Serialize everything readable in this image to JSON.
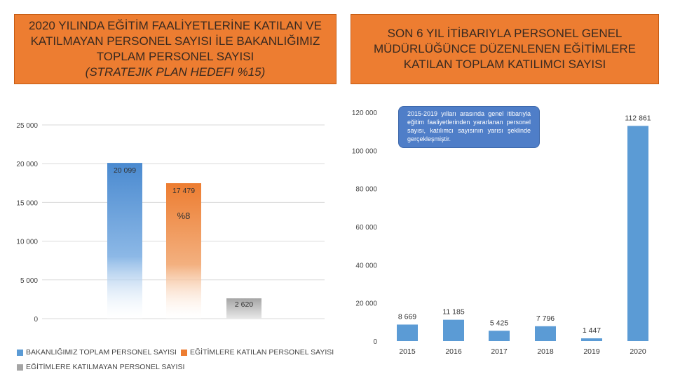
{
  "titles": {
    "left_main": "2020 YILINDA EĞİTİM FAALİYETLERİNE KATILAN VE KATILMAYAN PERSONEL SAYISI İLE BAKANLIĞIMIZ TOPLAM PERSONEL SAYISI",
    "left_sub": "(STRATEJIK PLAN HEDEFI %15)",
    "right_main": "SON 6 YIL İTİBARIYLA PERSONEL GENEL MÜDÜRLÜĞÜNCE DÜZENLENEN EĞİTİMLERE KATILAN TOPLAM KATILIMCI SAYISI"
  },
  "colors": {
    "title_bg": "#ed7d31",
    "blue": "#5b9bd5",
    "orange": "#ed7d31",
    "gray": "#a5a5a5",
    "callout_bg": "#4f7ec8"
  },
  "callout_text": "2015-2019 yılları arasında genel itibarıyla eğitim faaliyetlerinden yararlanan personel sayısı, katılımcı sayısının yarısı şeklinde gerçekleşmiştir.",
  "chart_data": [
    {
      "type": "bar",
      "categories": [
        "BAKANLIĞIMIZ TOPLAM PERSONEL SAYISI",
        "EĞİTİMLERE KATILAN PERSONEL SAYISI",
        "EĞİTİMLERE KATILMAYAN PERSONEL SAYISI"
      ],
      "values": [
        20099,
        17479,
        2620
      ],
      "data_labels": [
        "20 099",
        "17 479",
        "2 620"
      ],
      "annotation": "%8",
      "yticks": [
        "0",
        "5 000",
        "10 000",
        "15 000",
        "20 000",
        "25 000"
      ],
      "ylim": [
        0,
        25000
      ],
      "grid": true,
      "legend_position": "bottom",
      "legend": [
        "BAKANLIĞIMIZ TOPLAM PERSONEL SAYISI",
        "EĞİTİMLERE KATILAN PERSONEL SAYISI",
        "EĞİTİMLERE KATILMAYAN PERSONEL SAYISI"
      ]
    },
    {
      "type": "bar",
      "categories": [
        "2015",
        "2016",
        "2017",
        "2018",
        "2019",
        "2020"
      ],
      "values": [
        8669,
        11185,
        5425,
        7796,
        1447,
        112861
      ],
      "data_labels": [
        "8 669",
        "11 185",
        "5 425",
        "7 796",
        "1 447",
        "112 861"
      ],
      "yticks": [
        "0",
        "20 000",
        "40 000",
        "60 000",
        "80 000",
        "100 000",
        "120 000"
      ],
      "ylim": [
        0,
        120000
      ],
      "grid": false
    }
  ]
}
